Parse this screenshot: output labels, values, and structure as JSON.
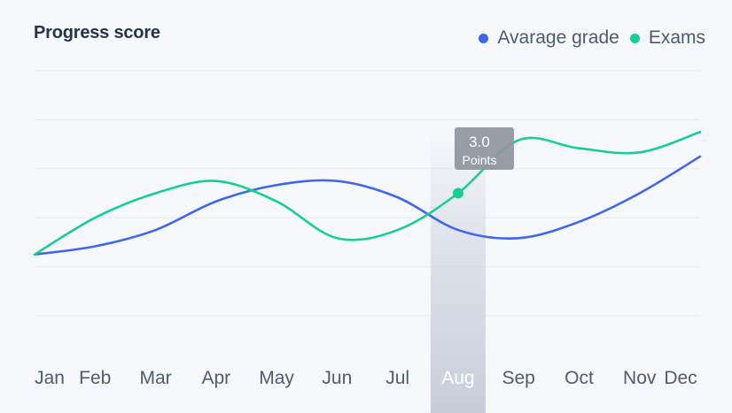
{
  "chart_data": {
    "type": "line",
    "title": "Progress score",
    "categories": [
      "Jan",
      "Feb",
      "Mar",
      "Apr",
      "May",
      "Jun",
      "Jul",
      "Aug",
      "Sep",
      "Oct",
      "Nov",
      "Dec"
    ],
    "series": [
      {
        "name": "Avarage grade",
        "color": "#3f67ea",
        "values": [
          1.5,
          1.7,
          2.1,
          2.8,
          3.2,
          3.3,
          2.9,
          2.1,
          1.9,
          2.3,
          3.0,
          3.9
        ]
      },
      {
        "name": "Exams",
        "color": "#17cf8f",
        "values": [
          1.5,
          2.4,
          3.0,
          3.3,
          2.8,
          1.9,
          2.1,
          3.0,
          4.3,
          4.1,
          4.0,
          4.5
        ]
      }
    ],
    "ylim": [
      0,
      6
    ],
    "grid": true,
    "legend_position": "top-right",
    "highlight": {
      "category": "Aug",
      "series": "Exams",
      "tooltip_value": "3.0",
      "tooltip_label": "Points"
    }
  }
}
